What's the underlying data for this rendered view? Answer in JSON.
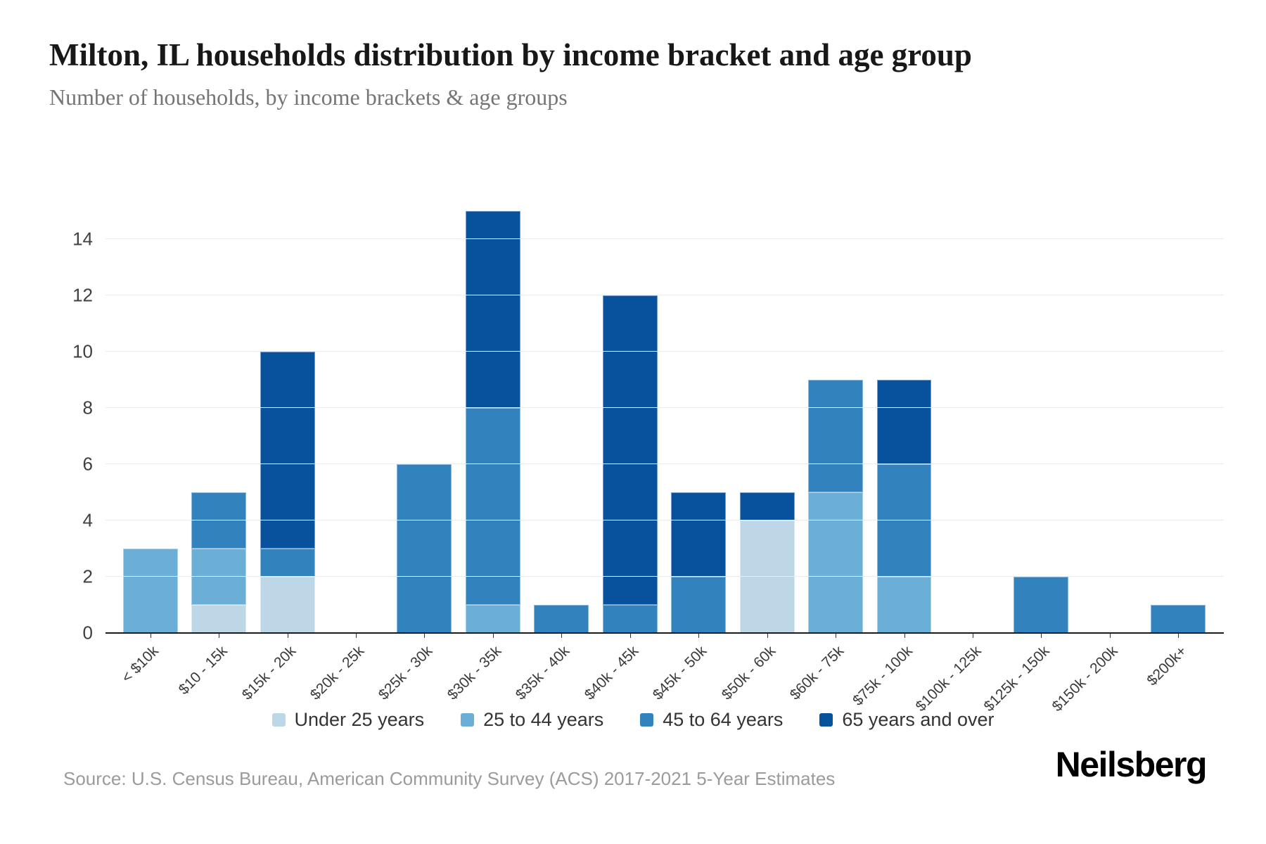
{
  "header": {
    "title": "Milton, IL households distribution by income bracket and age group",
    "subtitle": "Number of households, by income brackets & age groups"
  },
  "chart_data": {
    "type": "bar",
    "stacked": true,
    "title": "Milton, IL households distribution by income bracket and age group",
    "subtitle": "Number of households, by income brackets & age groups",
    "xlabel": "",
    "ylabel": "",
    "ylim": [
      0,
      15
    ],
    "yticks": [
      0,
      2,
      4,
      6,
      8,
      10,
      12,
      14
    ],
    "grid": true,
    "legend_position": "bottom",
    "categories": [
      "< $10k",
      "$10 - 15k",
      "$15k - 20k",
      "$20k - 25k",
      "$25k - 30k",
      "$30k - 35k",
      "$35k - 40k",
      "$40k - 45k",
      "$45k - 50k",
      "$50k - 60k",
      "$60k - 75k",
      "$75k - 100k",
      "$100k - 125k",
      "$125k - 150k",
      "$150k - 200k",
      "$200k+"
    ],
    "series": [
      {
        "name": "Under 25 years",
        "color": "#bdd7e7",
        "values": [
          0,
          1,
          2,
          0,
          0,
          0,
          0,
          0,
          0,
          4,
          0,
          0,
          0,
          0,
          0,
          0
        ]
      },
      {
        "name": "25 to 44 years",
        "color": "#6baed6",
        "values": [
          3,
          2,
          0,
          0,
          0,
          1,
          0,
          0,
          0,
          0,
          5,
          2,
          0,
          0,
          0,
          0
        ]
      },
      {
        "name": "45 to 64 years",
        "color": "#3182bd",
        "values": [
          0,
          2,
          1,
          0,
          6,
          7,
          1,
          1,
          2,
          0,
          4,
          4,
          0,
          2,
          0,
          1
        ]
      },
      {
        "name": "65 years and over",
        "color": "#08519c",
        "values": [
          0,
          0,
          7,
          0,
          0,
          7,
          0,
          11,
          3,
          1,
          0,
          3,
          0,
          0,
          0,
          0
        ]
      }
    ],
    "totals": [
      3,
      5,
      10,
      0,
      6,
      15,
      1,
      12,
      5,
      5,
      9,
      9,
      0,
      2,
      0,
      1
    ]
  },
  "footer": {
    "source": "Source: U.S. Census Bureau, American Community Survey (ACS) 2017-2021 5-Year Estimates",
    "logo": "Neilsberg"
  }
}
